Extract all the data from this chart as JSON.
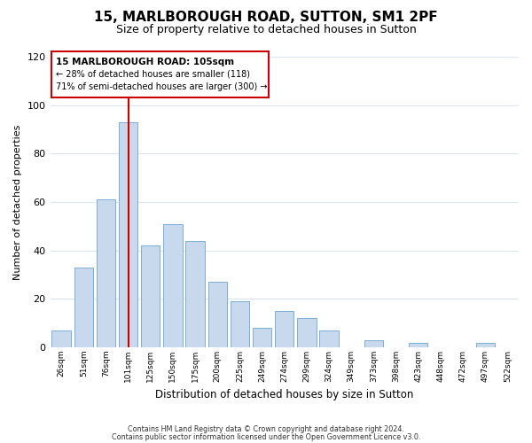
{
  "title": "15, MARLBOROUGH ROAD, SUTTON, SM1 2PF",
  "subtitle": "Size of property relative to detached houses in Sutton",
  "xlabel": "Distribution of detached houses by size in Sutton",
  "ylabel": "Number of detached properties",
  "bar_labels": [
    "26sqm",
    "51sqm",
    "76sqm",
    "101sqm",
    "125sqm",
    "150sqm",
    "175sqm",
    "200sqm",
    "225sqm",
    "249sqm",
    "274sqm",
    "299sqm",
    "324sqm",
    "349sqm",
    "373sqm",
    "398sqm",
    "423sqm",
    "448sqm",
    "472sqm",
    "497sqm",
    "522sqm"
  ],
  "bar_values": [
    7,
    33,
    61,
    93,
    42,
    51,
    44,
    27,
    19,
    8,
    15,
    12,
    7,
    0,
    3,
    0,
    2,
    0,
    0,
    2,
    0
  ],
  "bar_color": "#c8d9ed",
  "bar_edge_color": "#7bafd4",
  "ylim": [
    0,
    120
  ],
  "yticks": [
    0,
    20,
    40,
    60,
    80,
    100,
    120
  ],
  "vline_x": 3,
  "vline_color": "#cc0000",
  "annotation_title": "15 MARLBOROUGH ROAD: 105sqm",
  "annotation_line1": "← 28% of detached houses are smaller (118)",
  "annotation_line2": "71% of semi-detached houses are larger (300) →",
  "annotation_box_color": "#cc0000",
  "footer_line1": "Contains HM Land Registry data © Crown copyright and database right 2024.",
  "footer_line2": "Contains public sector information licensed under the Open Government Licence v3.0.",
  "background_color": "#ffffff",
  "grid_color": "#d8e4f0"
}
